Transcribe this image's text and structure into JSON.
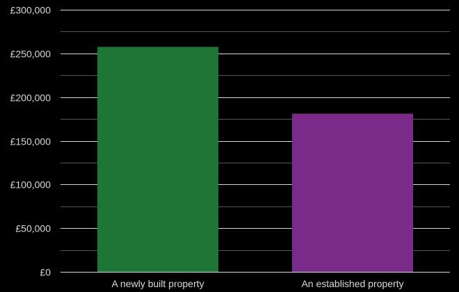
{
  "chart_data": {
    "type": "bar",
    "title": "",
    "xlabel": "",
    "ylabel": "",
    "categories": [
      "A newly built property",
      "An established property"
    ],
    "values": [
      257500,
      181000
    ],
    "bar_colors": [
      "#1e7535",
      "#7a2b8a"
    ],
    "ylim": [
      0,
      300000
    ],
    "yticks": [
      0,
      50000,
      100000,
      150000,
      200000,
      250000,
      300000
    ],
    "ytick_labels": [
      "£0",
      "£50,000",
      "£100,000",
      "£150,000",
      "£200,000",
      "£250,000",
      "£300,000"
    ],
    "grid": true,
    "legend": "none"
  },
  "colors": {
    "background": "#000000",
    "major_grid": "#d9d9d9",
    "minor_grid": "#555555",
    "text": "#d9d9d9"
  }
}
